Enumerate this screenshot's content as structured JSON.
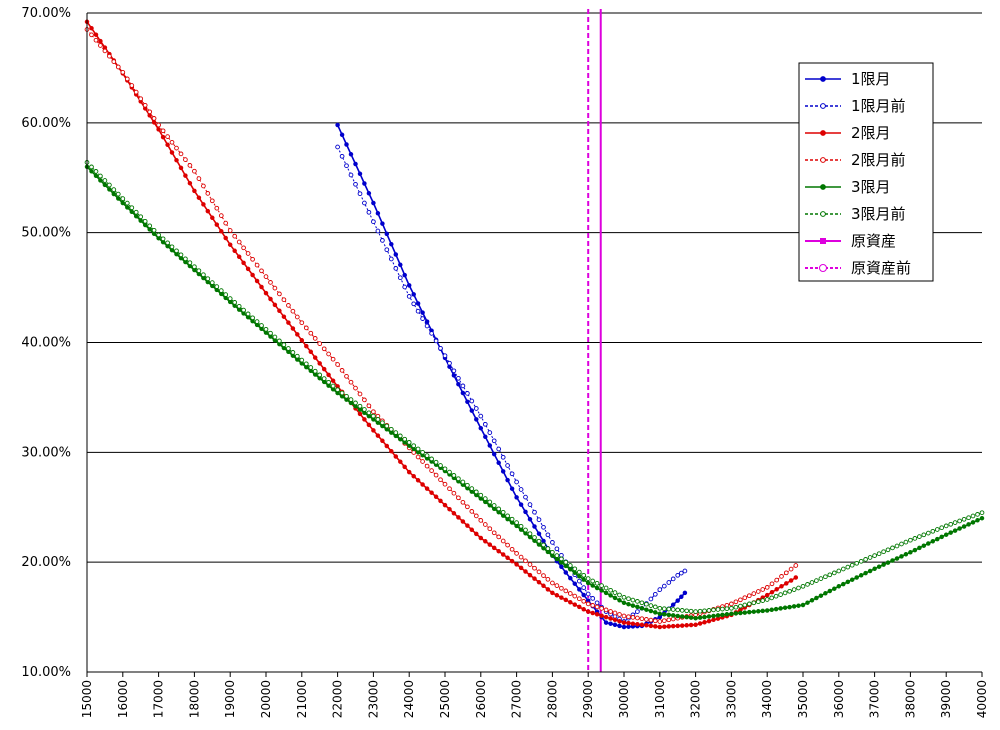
{
  "chart_data": {
    "type": "line",
    "title": "",
    "xlabel": "",
    "ylabel": "",
    "xlim": [
      15000,
      40000
    ],
    "ylim": [
      0.1,
      0.7
    ],
    "grid": "horizontal",
    "legend_position": "top-right",
    "x_ticks": [
      "15000",
      "16000",
      "17000",
      "18000",
      "19000",
      "20000",
      "21000",
      "22000",
      "23000",
      "24000",
      "25000",
      "26000",
      "27000",
      "28000",
      "29000",
      "30000",
      "31000",
      "32000",
      "33000",
      "34000",
      "35000",
      "36000",
      "37000",
      "38000",
      "39000",
      "40000"
    ],
    "y_ticks": [
      "10.00%",
      "20.00%",
      "30.00%",
      "40.00%",
      "50.00%",
      "60.00%",
      "70.00%"
    ],
    "series": [
      {
        "name": "1限月",
        "color": "#0000cc",
        "dash": "solid",
        "marker": "filled",
        "points": [
          [
            22000,
            0.598
          ],
          [
            23000,
            0.527
          ],
          [
            24000,
            0.452
          ],
          [
            25000,
            0.386
          ],
          [
            26000,
            0.322
          ],
          [
            27000,
            0.259
          ],
          [
            28000,
            0.206
          ],
          [
            29000,
            0.165
          ],
          [
            29500,
            0.145
          ],
          [
            30000,
            0.141
          ],
          [
            30500,
            0.142
          ],
          [
            31000,
            0.15
          ],
          [
            31500,
            0.165
          ],
          [
            31700,
            0.172
          ]
        ]
      },
      {
        "name": "1限月前",
        "color": "#0000cc",
        "dash": "dotted",
        "marker": "open",
        "points": [
          [
            22000,
            0.578
          ],
          [
            23000,
            0.51
          ],
          [
            24000,
            0.442
          ],
          [
            25000,
            0.388
          ],
          [
            26000,
            0.333
          ],
          [
            27000,
            0.273
          ],
          [
            28000,
            0.218
          ],
          [
            29000,
            0.171
          ],
          [
            29500,
            0.155
          ],
          [
            30000,
            0.146
          ],
          [
            30500,
            0.158
          ],
          [
            31000,
            0.175
          ],
          [
            31500,
            0.188
          ],
          [
            31700,
            0.192
          ]
        ]
      },
      {
        "name": "2限月",
        "color": "#dd0000",
        "dash": "solid",
        "marker": "filled",
        "points": [
          [
            15000,
            0.692
          ],
          [
            16000,
            0.645
          ],
          [
            17000,
            0.594
          ],
          [
            18000,
            0.538
          ],
          [
            19000,
            0.489
          ],
          [
            20000,
            0.445
          ],
          [
            21000,
            0.402
          ],
          [
            22000,
            0.36
          ],
          [
            23000,
            0.32
          ],
          [
            24000,
            0.282
          ],
          [
            25000,
            0.252
          ],
          [
            26000,
            0.222
          ],
          [
            27000,
            0.198
          ],
          [
            28000,
            0.172
          ],
          [
            29000,
            0.155
          ],
          [
            30000,
            0.145
          ],
          [
            31000,
            0.141
          ],
          [
            32000,
            0.143
          ],
          [
            33000,
            0.152
          ],
          [
            34000,
            0.17
          ],
          [
            34800,
            0.186
          ]
        ]
      },
      {
        "name": "2限月前",
        "color": "#dd0000",
        "dash": "dotted",
        "marker": "open",
        "points": [
          [
            15000,
            0.685
          ],
          [
            16000,
            0.646
          ],
          [
            17000,
            0.598
          ],
          [
            18000,
            0.556
          ],
          [
            19000,
            0.502
          ],
          [
            20000,
            0.46
          ],
          [
            21000,
            0.418
          ],
          [
            22000,
            0.38
          ],
          [
            23000,
            0.337
          ],
          [
            24000,
            0.304
          ],
          [
            25000,
            0.271
          ],
          [
            26000,
            0.238
          ],
          [
            27000,
            0.208
          ],
          [
            28000,
            0.181
          ],
          [
            29000,
            0.162
          ],
          [
            30000,
            0.151
          ],
          [
            31000,
            0.146
          ],
          [
            32000,
            0.152
          ],
          [
            33000,
            0.162
          ],
          [
            34000,
            0.177
          ],
          [
            34800,
            0.197
          ]
        ]
      },
      {
        "name": "3限月",
        "color": "#007700",
        "dash": "solid",
        "marker": "filled",
        "points": [
          [
            15000,
            0.56
          ],
          [
            16000,
            0.527
          ],
          [
            17000,
            0.495
          ],
          [
            18000,
            0.466
          ],
          [
            19000,
            0.437
          ],
          [
            20000,
            0.409
          ],
          [
            21000,
            0.381
          ],
          [
            22000,
            0.354
          ],
          [
            23000,
            0.33
          ],
          [
            24000,
            0.306
          ],
          [
            25000,
            0.283
          ],
          [
            26000,
            0.258
          ],
          [
            27000,
            0.233
          ],
          [
            28000,
            0.206
          ],
          [
            29000,
            0.181
          ],
          [
            30000,
            0.163
          ],
          [
            31000,
            0.153
          ],
          [
            32000,
            0.149
          ],
          [
            33000,
            0.153
          ],
          [
            34000,
            0.156
          ],
          [
            35000,
            0.161
          ],
          [
            36000,
            0.178
          ],
          [
            37000,
            0.194
          ],
          [
            38000,
            0.209
          ],
          [
            39000,
            0.225
          ],
          [
            40000,
            0.24
          ]
        ]
      },
      {
        "name": "3限月前",
        "color": "#007700",
        "dash": "dotted",
        "marker": "open",
        "points": [
          [
            15000,
            0.564
          ],
          [
            16000,
            0.531
          ],
          [
            17000,
            0.498
          ],
          [
            18000,
            0.469
          ],
          [
            19000,
            0.44
          ],
          [
            20000,
            0.412
          ],
          [
            21000,
            0.384
          ],
          [
            22000,
            0.357
          ],
          [
            23000,
            0.333
          ],
          [
            24000,
            0.309
          ],
          [
            25000,
            0.285
          ],
          [
            26000,
            0.261
          ],
          [
            27000,
            0.236
          ],
          [
            28000,
            0.209
          ],
          [
            29000,
            0.185
          ],
          [
            30000,
            0.168
          ],
          [
            31000,
            0.158
          ],
          [
            32000,
            0.155
          ],
          [
            33000,
            0.158
          ],
          [
            34000,
            0.166
          ],
          [
            35000,
            0.178
          ],
          [
            36000,
            0.192
          ],
          [
            37000,
            0.206
          ],
          [
            38000,
            0.22
          ],
          [
            39000,
            0.233
          ],
          [
            40000,
            0.245
          ]
        ]
      }
    ],
    "vertical_markers": [
      {
        "name": "原資産",
        "x": 29350,
        "color": "#dd00dd",
        "dash": "solid"
      },
      {
        "name": "原資産前",
        "x": 29000,
        "color": "#dd00dd",
        "dash": "dotted"
      }
    ]
  }
}
